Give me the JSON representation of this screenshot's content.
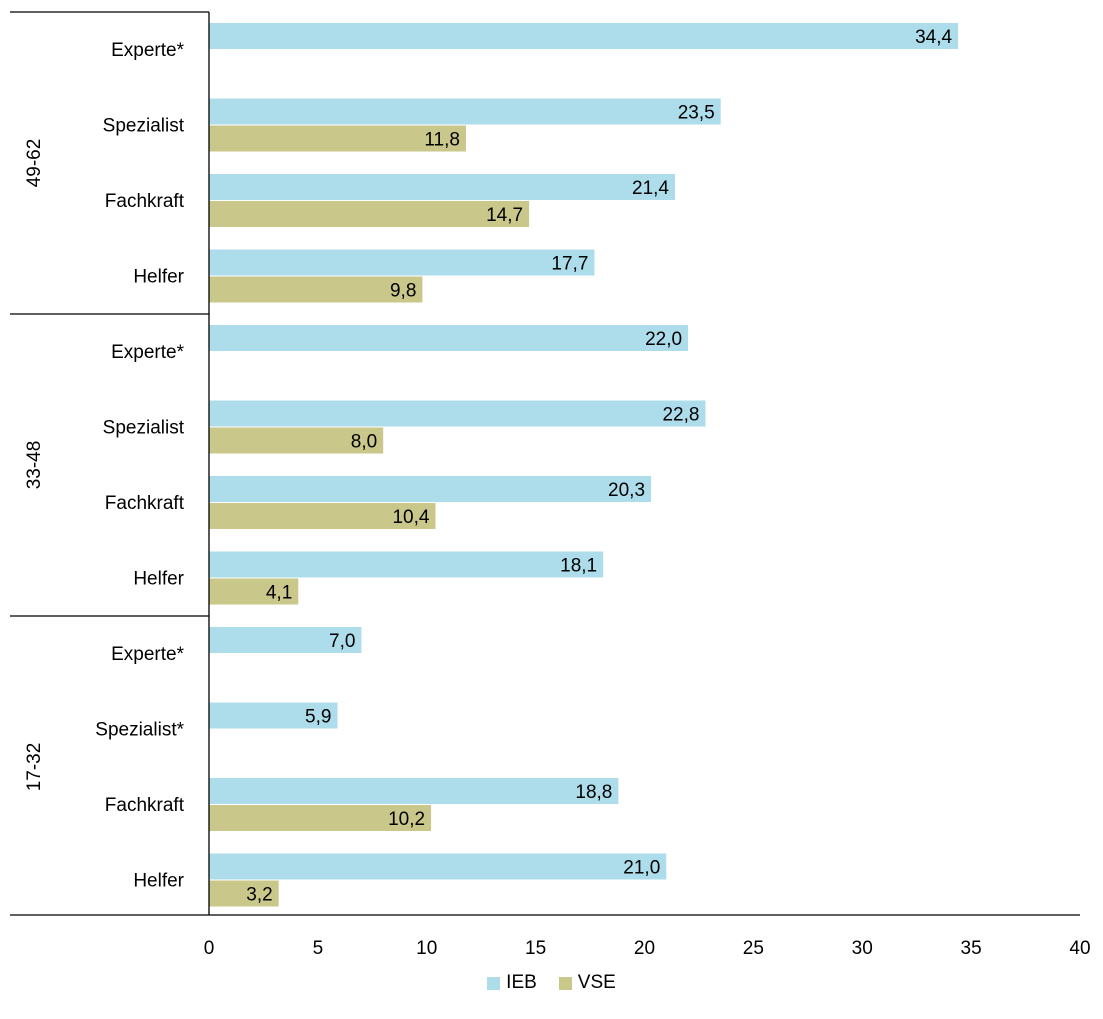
{
  "chart_data": {
    "type": "bar",
    "orientation": "horizontal",
    "xlim": [
      0,
      40
    ],
    "x_ticks": [
      "0",
      "5",
      "10",
      "15",
      "20",
      "25",
      "30",
      "35",
      "40"
    ],
    "groups": [
      {
        "label": "49-62",
        "rows": [
          {
            "label": "Experte*",
            "IEB": 34.4,
            "IEB_label": "34,4",
            "VSE": null,
            "VSE_label": ""
          },
          {
            "label": "Spezialist",
            "IEB": 23.5,
            "IEB_label": "23,5",
            "VSE": 11.8,
            "VSE_label": "11,8"
          },
          {
            "label": "Fachkraft",
            "IEB": 21.4,
            "IEB_label": "21,4",
            "VSE": 14.7,
            "VSE_label": "14,7"
          },
          {
            "label": "Helfer",
            "IEB": 17.7,
            "IEB_label": "17,7",
            "VSE": 9.8,
            "VSE_label": "9,8"
          }
        ]
      },
      {
        "label": "33-48",
        "rows": [
          {
            "label": "Experte*",
            "IEB": 22.0,
            "IEB_label": "22,0",
            "VSE": null,
            "VSE_label": ""
          },
          {
            "label": "Spezialist",
            "IEB": 22.8,
            "IEB_label": "22,8",
            "VSE": 8.0,
            "VSE_label": "8,0"
          },
          {
            "label": "Fachkraft",
            "IEB": 20.3,
            "IEB_label": "20,3",
            "VSE": 10.4,
            "VSE_label": "10,4"
          },
          {
            "label": "Helfer",
            "IEB": 18.1,
            "IEB_label": "18,1",
            "VSE": 4.1,
            "VSE_label": "4,1"
          }
        ]
      },
      {
        "label": "17-32",
        "rows": [
          {
            "label": "Experte*",
            "IEB": 7.0,
            "IEB_label": "7,0",
            "VSE": null,
            "VSE_label": ""
          },
          {
            "label": "Spezialist*",
            "IEB": 5.9,
            "IEB_label": "5,9",
            "VSE": null,
            "VSE_label": ""
          },
          {
            "label": "Fachkraft",
            "IEB": 18.8,
            "IEB_label": "18,8",
            "VSE": 10.2,
            "VSE_label": "10,2"
          },
          {
            "label": "Helfer",
            "IEB": 21.0,
            "IEB_label": "21,0",
            "VSE": 3.2,
            "VSE_label": "3,2"
          }
        ]
      }
    ],
    "series": [
      {
        "name": "IEB",
        "color": "#ADDCEA"
      },
      {
        "name": "VSE",
        "color": "#C9C78A"
      }
    ],
    "legend_position": "bottom-center",
    "grid": false
  }
}
